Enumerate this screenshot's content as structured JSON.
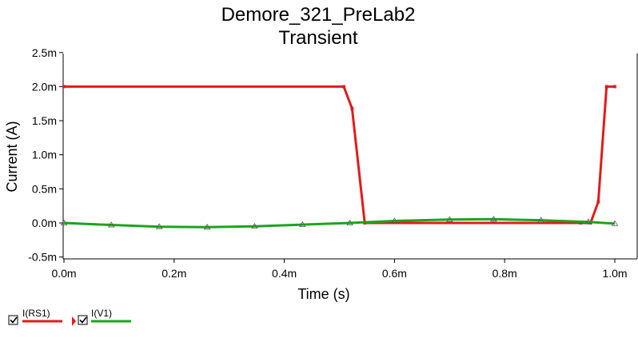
{
  "chart_data": {
    "type": "line",
    "title": "Demore_321_PreLab2",
    "subtitle": "Transient",
    "xlabel": "Time (s)",
    "ylabel": "Current (A)",
    "xlim": [
      -0.0015,
      1.0015
    ],
    "ylim": [
      -0.5,
      2.5
    ],
    "x_ticks": [
      0.0,
      0.2,
      0.4,
      0.6,
      0.8,
      1.0
    ],
    "x_tick_labels": [
      "0.0m",
      "0.2m",
      "0.4m",
      "0.6m",
      "0.8m",
      "1.0m"
    ],
    "y_ticks": [
      2.5,
      2.0,
      1.5,
      1.0,
      0.5,
      0.0,
      -0.5
    ],
    "y_tick_labels": [
      "2.5m",
      "2.0m",
      "1.5m",
      "1.0m",
      "0.5m",
      "0.0m",
      "-0.5m"
    ],
    "grid": false,
    "legend_position": "bottom-left",
    "series": [
      {
        "name": "I(RS1)",
        "color": "#e31b1b",
        "marker": "square",
        "x": [
          0.0,
          0.508,
          0.523,
          0.546,
          0.938,
          0.956,
          0.97,
          0.985,
          1.0
        ],
        "y": [
          2.0,
          2.0,
          1.68,
          0.0,
          0.0,
          0.0,
          0.31,
          2.0,
          2.0
        ]
      },
      {
        "name": "I(V1)",
        "color": "#1aa51a",
        "marker": "triangle",
        "x": [
          0.0,
          0.086,
          0.173,
          0.26,
          0.346,
          0.433,
          0.519,
          0.6,
          0.7,
          0.78,
          0.866,
          0.952,
          1.0
        ],
        "y": [
          0.0,
          -0.03,
          -0.055,
          -0.062,
          -0.05,
          -0.025,
          0.0,
          0.03,
          0.05,
          0.055,
          0.04,
          0.015,
          -0.01
        ]
      }
    ]
  }
}
